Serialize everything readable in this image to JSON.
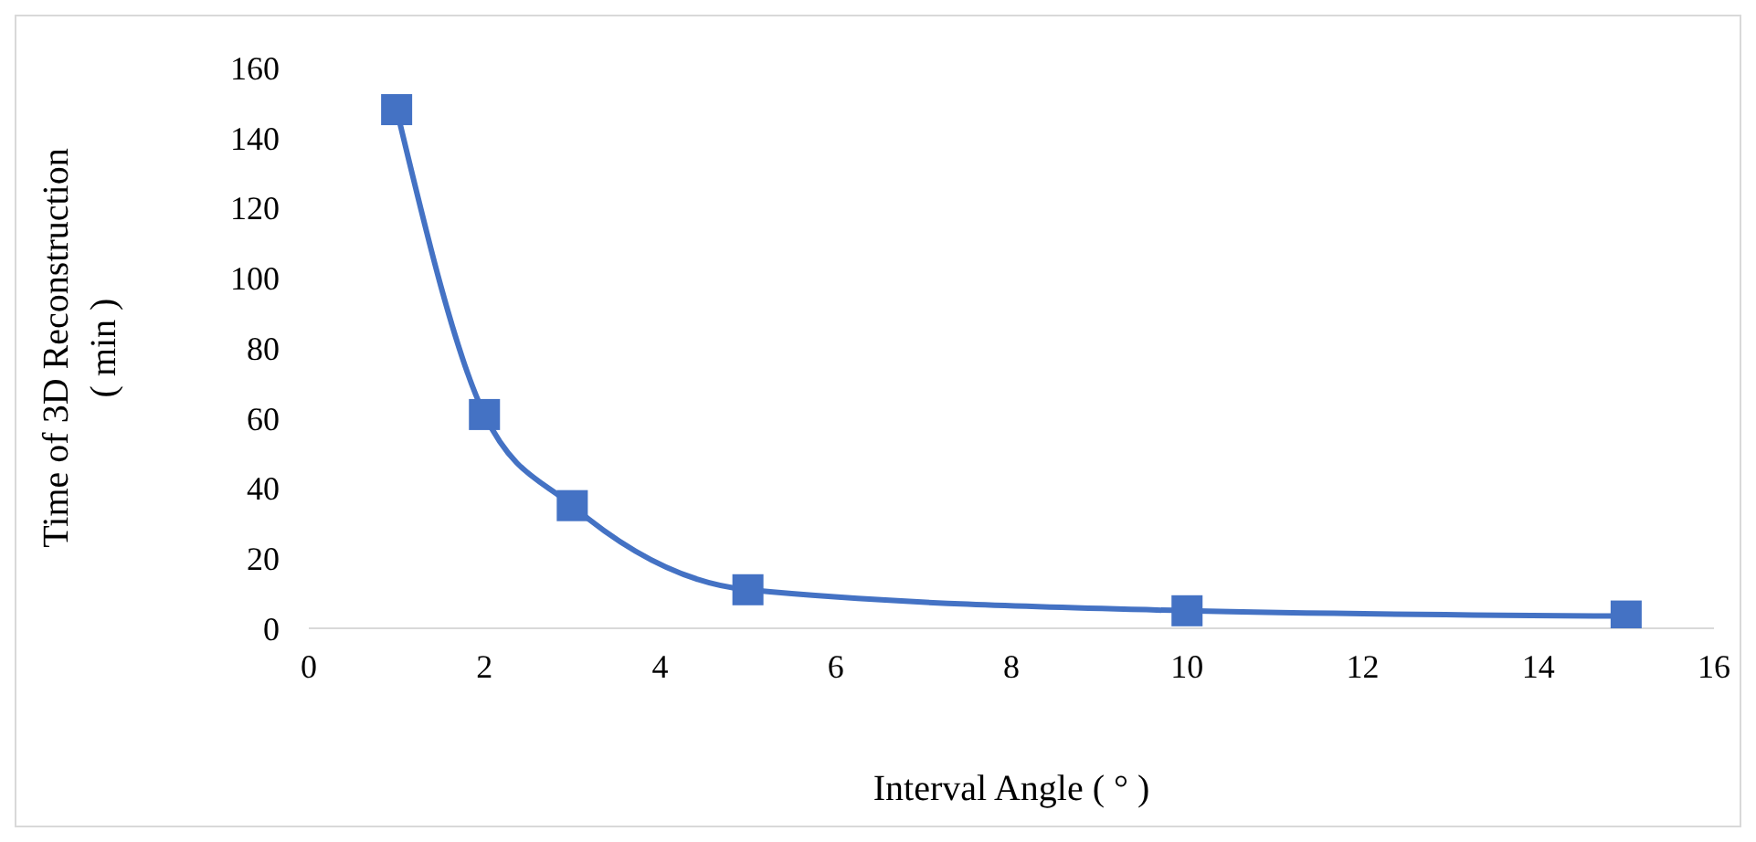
{
  "chart_data": {
    "type": "line",
    "xlabel": "Interval Angle ( ° )",
    "ylabel": "Time of 3D Reconstruction\n( min )",
    "x": [
      1,
      2,
      3,
      5,
      10,
      15
    ],
    "series": [
      {
        "color": "#4472c4",
        "values": [
          148,
          61,
          35,
          11,
          5,
          3.5
        ]
      }
    ],
    "xlim": [
      0,
      16
    ],
    "xticks": [
      0,
      2,
      4,
      6,
      8,
      10,
      12,
      14,
      16
    ],
    "ylim": [
      0,
      160
    ],
    "yticks": [
      0,
      20,
      40,
      60,
      80,
      100,
      120,
      140,
      160
    ],
    "marker": "square",
    "grid": false,
    "legend": false
  }
}
